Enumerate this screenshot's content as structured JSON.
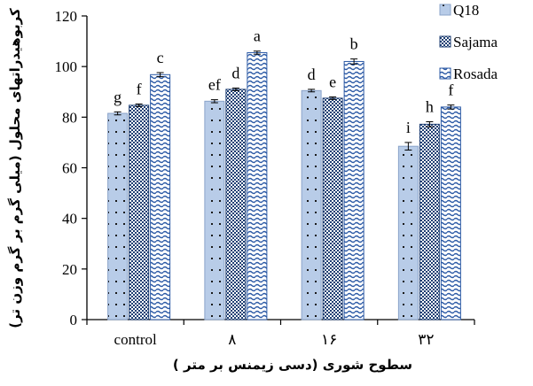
{
  "chart_data": {
    "type": "bar",
    "xlabel": "سطوح شوری (دسی زیمنس بر متر )",
    "ylabel": "کربوهیدراتهای محلول (میلی گرم بر گرم وزن تر)",
    "ylim": [
      0,
      120
    ],
    "yticks": [
      "0",
      "20",
      "40",
      "60",
      "80",
      "100",
      "120"
    ],
    "categories": [
      "control",
      "۸",
      "۱۶",
      "۳۲"
    ],
    "legend_position": "top-right",
    "series": [
      {
        "name": "Q18",
        "color": "#b8cce8",
        "pattern": "dots",
        "values": [
          81.5,
          86.3,
          90.5,
          68.5
        ],
        "errors": [
          0.6,
          0.6,
          0.5,
          1.5
        ],
        "letters": [
          "g",
          "ef",
          "d",
          "i"
        ]
      },
      {
        "name": "Sajama",
        "color": "#1f3f73",
        "pattern": "checker",
        "values": [
          84.7,
          91.0,
          87.5,
          77.2
        ],
        "errors": [
          0.5,
          0.5,
          0.5,
          1.0
        ],
        "letters": [
          "f",
          "d",
          "e",
          "h"
        ]
      },
      {
        "name": "Rosada",
        "color": "#2b59a5",
        "pattern": "waves",
        "values": [
          96.8,
          105.5,
          102.0,
          84.0
        ],
        "errors": [
          0.8,
          0.6,
          1.0,
          0.8
        ],
        "letters": [
          "c",
          "a",
          "b",
          "f"
        ]
      }
    ]
  }
}
